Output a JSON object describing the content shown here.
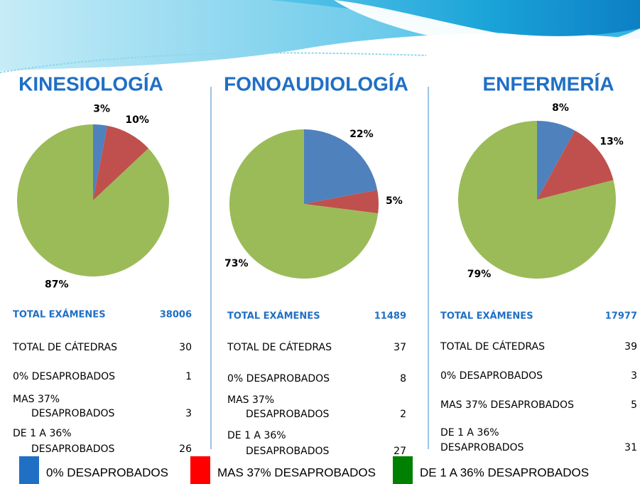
{
  "chart_data": [
    {
      "type": "pie",
      "title": "KINESIOLOGÍA",
      "values": [
        3,
        10,
        87
      ],
      "value_labels": [
        "3%",
        "10%",
        "87%"
      ],
      "colors": [
        "#4f81bd",
        "#c0504d",
        "#9bbb59"
      ]
    },
    {
      "type": "pie",
      "title": "FONOAUDIOLOGÍA",
      "values": [
        22,
        5,
        73
      ],
      "value_labels": [
        "22%",
        "5%",
        "73%"
      ],
      "colors": [
        "#4f81bd",
        "#c0504d",
        "#9bbb59"
      ]
    },
    {
      "type": "pie",
      "title": "ENFERMERÍA",
      "values": [
        8,
        13,
        79
      ],
      "value_labels": [
        "8%",
        "13%",
        "79%"
      ],
      "colors": [
        "#4f81bd",
        "#c0504d",
        "#9bbb59"
      ]
    }
  ],
  "legend": [
    {
      "name": "0% DESAPROBADOS",
      "color": "#1f6fc5"
    },
    {
      "name": "MAS 37% DESAPROBADOS",
      "color": "#ff0000"
    },
    {
      "name": "DE 1 A 36% DESAPROBADOS",
      "color": "#008000"
    }
  ],
  "tables": [
    {
      "rows": [
        {
          "label": [
            "TOTAL EXÁMENES"
          ],
          "value": 38006
        },
        {
          "label": [
            "TOTAL DE CÁTEDRAS"
          ],
          "value": 30
        },
        {
          "label": [
            "0% DESAPROBADOS"
          ],
          "value": 1
        },
        {
          "label": [
            "MAS 37%",
            "DESAPROBADOS"
          ],
          "value": 3
        },
        {
          "label": [
            "DE 1 A 36%",
            "DESAPROBADOS"
          ],
          "value": 26
        }
      ]
    },
    {
      "rows": [
        {
          "label": [
            "TOTAL EXÁMENES"
          ],
          "value": 11489
        },
        {
          "label": [
            "TOTAL DE CÁTEDRAS"
          ],
          "value": 37
        },
        {
          "label": [
            "0% DESAPROBADOS"
          ],
          "value": 8
        },
        {
          "label": [
            "MAS 37%",
            "DESAPROBADOS"
          ],
          "value": 2
        },
        {
          "label": [
            "DE 1 A 36%",
            "DESAPROBADOS"
          ],
          "value": 27
        }
      ]
    },
    {
      "rows": [
        {
          "label": [
            "TOTAL EXÁMENES"
          ],
          "value": 17977
        },
        {
          "label": [
            "TOTAL DE CÁTEDRAS"
          ],
          "value": 39
        },
        {
          "label": [
            "0% DESAPROBADOS"
          ],
          "value": 3
        },
        {
          "label": [
            "MAS 37% DESAPROBADOS"
          ],
          "value": 5
        },
        {
          "label": [
            "DE 1 A 36%",
            "DESAPROBADOS"
          ],
          "value": 31
        }
      ]
    }
  ]
}
